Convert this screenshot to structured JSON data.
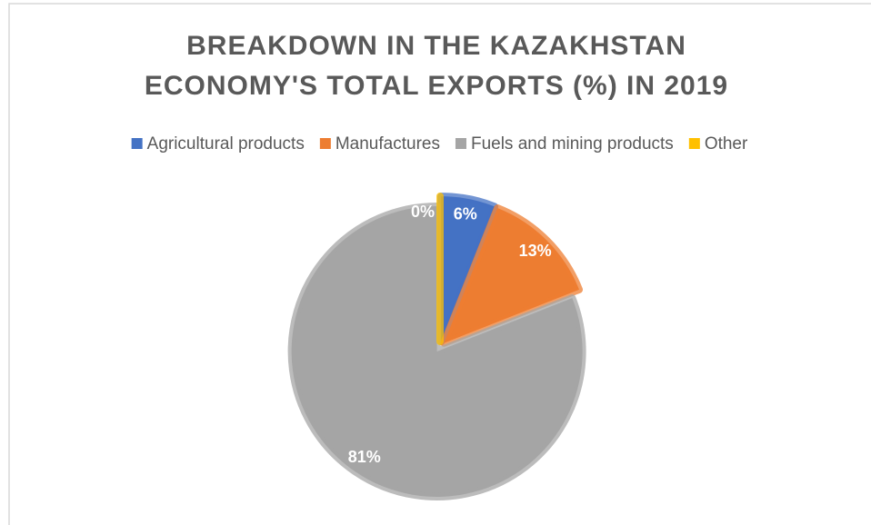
{
  "chart_data": {
    "type": "pie",
    "title": [
      "BREAKDOWN IN THE KAZAKHSTAN",
      "ECONOMY'S TOTAL EXPORTS (%) IN 2019"
    ],
    "categories": [
      "Agricultural products",
      "Manufactures",
      "Fuels and mining products",
      "Other"
    ],
    "values": [
      6,
      13,
      81,
      0
    ],
    "value_labels": [
      "6%",
      "13%",
      "81%",
      "0%"
    ],
    "colors": [
      "#4472c4",
      "#ed7d31",
      "#a5a5a5",
      "#ffc000"
    ],
    "legend": "top"
  }
}
